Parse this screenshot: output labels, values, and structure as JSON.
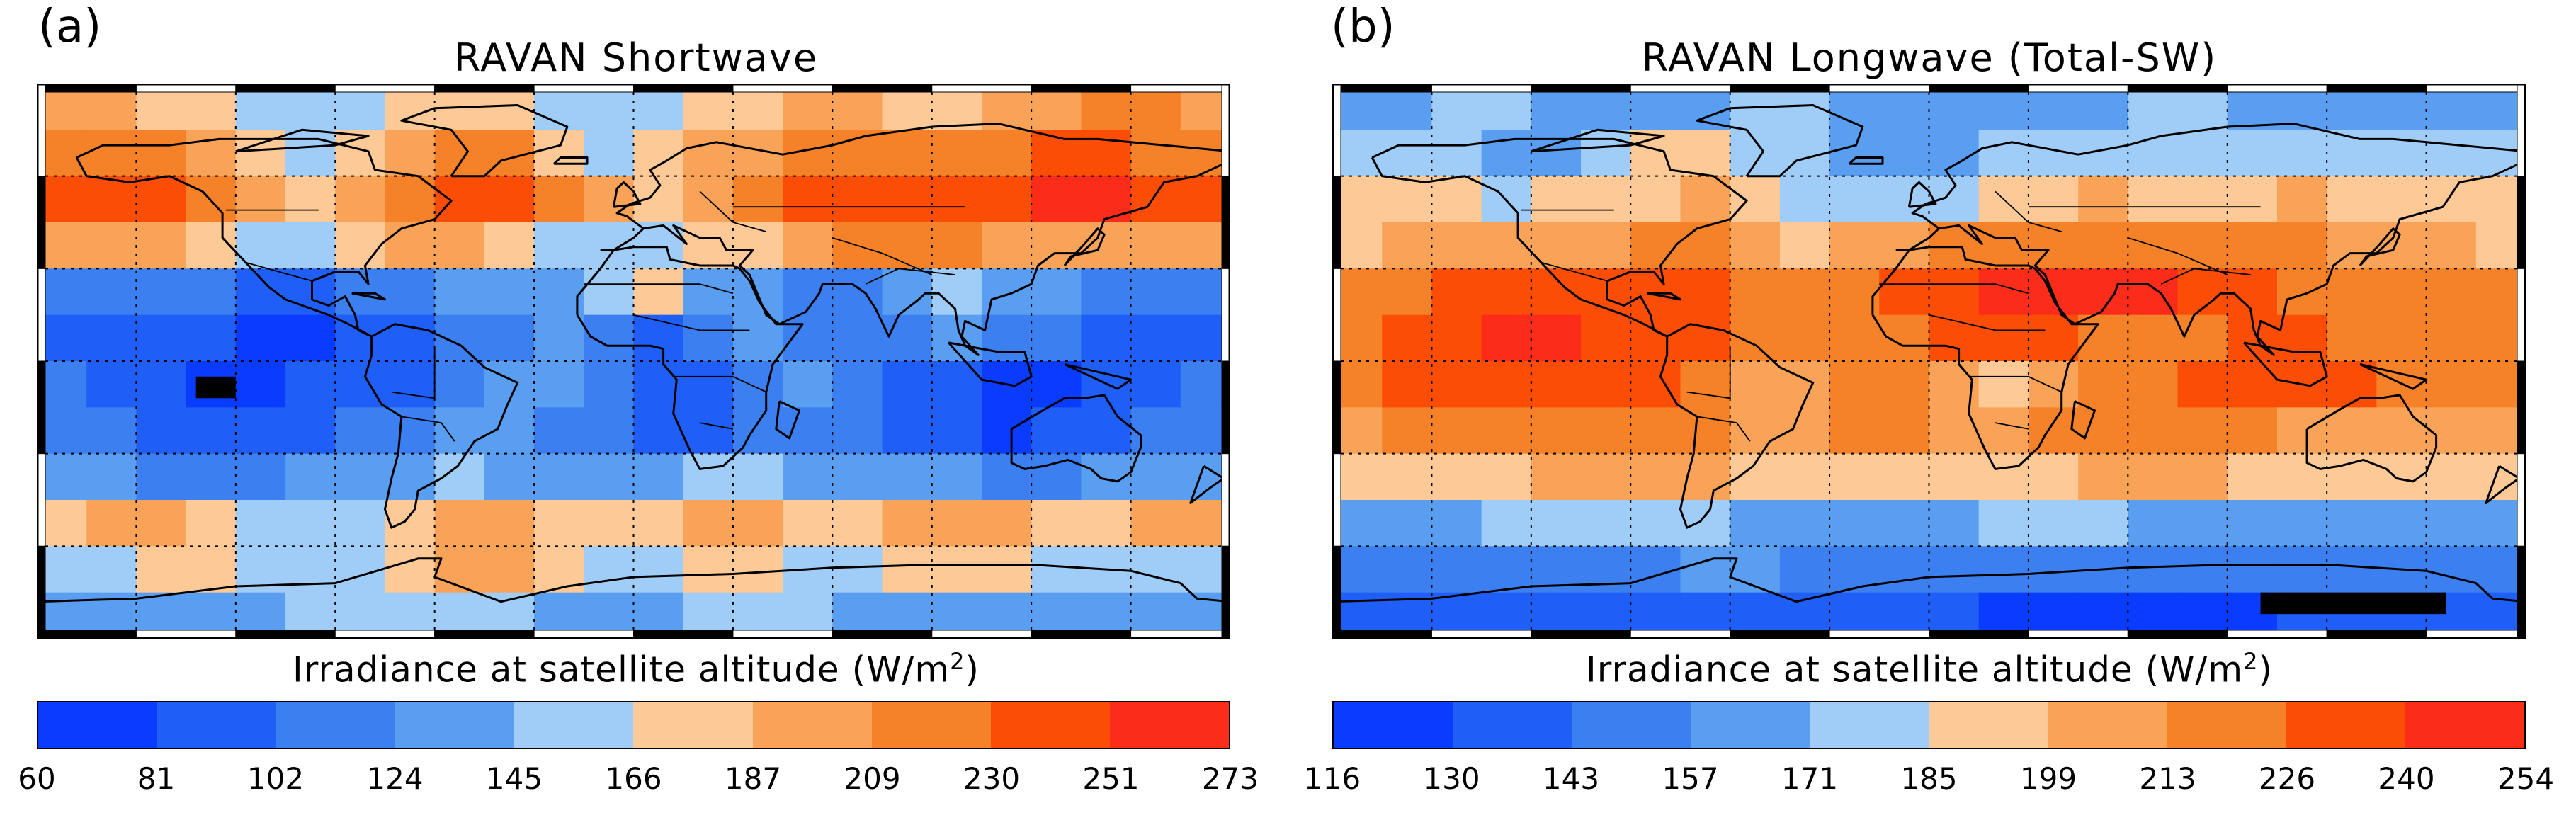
{
  "palette": [
    "#0a3cff",
    "#1f5ef7",
    "#3b7ff0",
    "#5a9ef2",
    "#9fcdf8",
    "#fcc997",
    "#f8a358",
    "#f58128",
    "#fb4d06",
    "#fc2c1b"
  ],
  "coastline_color": "#000000",
  "missing_color": "#000000",
  "panels": [
    {
      "letter": "(a)",
      "title": "RAVAN Shortwave",
      "colorbar_label": "Irradiance at satellite altitude (W/m",
      "colorbar_label_sup": "2",
      "colorbar_label_tail": ")",
      "ticks": [
        "60",
        "81",
        "102",
        "124",
        "145",
        "166",
        "187",
        "209",
        "230",
        "251",
        "273"
      ],
      "bands": [
        {
          "lat0": 90,
          "lat1": 75,
          "classes": [
            6,
            6,
            5,
            5,
            4,
            4,
            4,
            5,
            5,
            5,
            4,
            4,
            4,
            5,
            5,
            6,
            6,
            5,
            5,
            6,
            6,
            7,
            7,
            6
          ]
        },
        {
          "lat0": 75,
          "lat1": 60,
          "classes": [
            7,
            7,
            7,
            6,
            5,
            4,
            5,
            6,
            7,
            7,
            5,
            4,
            5,
            6,
            6,
            7,
            7,
            7,
            7,
            7,
            8,
            8,
            7,
            7
          ]
        },
        {
          "lat0": 60,
          "lat1": 45,
          "classes": [
            8,
            8,
            8,
            7,
            6,
            5,
            6,
            7,
            8,
            8,
            7,
            6,
            5,
            6,
            7,
            8,
            8,
            8,
            8,
            8,
            9,
            9,
            8,
            8
          ]
        },
        {
          "lat0": 45,
          "lat1": 30,
          "classes": [
            6,
            6,
            6,
            5,
            4,
            4,
            5,
            6,
            6,
            5,
            4,
            4,
            4,
            5,
            5,
            6,
            7,
            7,
            7,
            6,
            6,
            6,
            6,
            6
          ]
        },
        {
          "lat0": 30,
          "lat1": 15,
          "classes": [
            2,
            2,
            2,
            2,
            1,
            1,
            2,
            2,
            3,
            3,
            3,
            4,
            5,
            3,
            3,
            2,
            2,
            3,
            4,
            3,
            3,
            2,
            2,
            2
          ]
        },
        {
          "lat0": 15,
          "lat1": 0,
          "classes": [
            1,
            1,
            1,
            1,
            0,
            0,
            1,
            1,
            2,
            2,
            3,
            2,
            1,
            2,
            3,
            2,
            2,
            2,
            3,
            2,
            2,
            1,
            1,
            1
          ]
        },
        {
          "lat0": 0,
          "lat1": -15,
          "classes": [
            2,
            1,
            1,
            0,
            0,
            1,
            1,
            1,
            2,
            3,
            3,
            2,
            1,
            1,
            2,
            3,
            2,
            1,
            1,
            0,
            0,
            1,
            1,
            2
          ]
        },
        {
          "lat0": -15,
          "lat1": -30,
          "classes": [
            2,
            2,
            1,
            1,
            1,
            1,
            2,
            2,
            3,
            3,
            2,
            2,
            1,
            1,
            2,
            2,
            2,
            1,
            1,
            0,
            1,
            1,
            2,
            2
          ]
        },
        {
          "lat0": -30,
          "lat1": -45,
          "classes": [
            3,
            3,
            2,
            2,
            2,
            3,
            3,
            3,
            4,
            3,
            3,
            3,
            3,
            4,
            4,
            3,
            3,
            3,
            3,
            2,
            2,
            3,
            3,
            3
          ]
        },
        {
          "lat0": -45,
          "lat1": -60,
          "classes": [
            5,
            6,
            6,
            5,
            4,
            4,
            4,
            5,
            6,
            6,
            5,
            5,
            5,
            6,
            6,
            5,
            5,
            6,
            6,
            6,
            5,
            5,
            6,
            6
          ]
        },
        {
          "lat0": -60,
          "lat1": -75,
          "classes": [
            4,
            4,
            5,
            5,
            4,
            4,
            4,
            5,
            6,
            6,
            5,
            4,
            4,
            5,
            5,
            4,
            4,
            5,
            5,
            5,
            4,
            4,
            4,
            4
          ]
        },
        {
          "lat0": -75,
          "lat1": -90,
          "classes": [
            3,
            3,
            3,
            3,
            3,
            4,
            4,
            4,
            4,
            4,
            3,
            3,
            3,
            4,
            4,
            4,
            3,
            3,
            3,
            3,
            3,
            3,
            3,
            3
          ]
        }
      ],
      "missing": [
        {
          "lon0": -132,
          "lon1": -120,
          "lat0": -5,
          "lat1": -12
        }
      ]
    },
    {
      "letter": "(b)",
      "title": "RAVAN Longwave (Total-SW)",
      "colorbar_label": "Irradiance at satellite altitude (W/m",
      "colorbar_label_sup": "2",
      "colorbar_label_tail": ")",
      "ticks": [
        "116",
        "130",
        "143",
        "157",
        "171",
        "185",
        "199",
        "213",
        "226",
        "240",
        "254"
      ],
      "bands": [
        {
          "lat0": 90,
          "lat1": 75,
          "classes": [
            3,
            3,
            4,
            4,
            3,
            3,
            3,
            3,
            4,
            4,
            3,
            3,
            3,
            3,
            3,
            3,
            4,
            4,
            3,
            3,
            3,
            3,
            3,
            3
          ]
        },
        {
          "lat0": 75,
          "lat1": 60,
          "classes": [
            4,
            4,
            4,
            3,
            3,
            4,
            5,
            5,
            4,
            4,
            3,
            3,
            3,
            4,
            4,
            4,
            4,
            4,
            4,
            4,
            4,
            4,
            4,
            4
          ]
        },
        {
          "lat0": 60,
          "lat1": 45,
          "classes": [
            5,
            5,
            5,
            4,
            5,
            5,
            5,
            6,
            5,
            4,
            4,
            4,
            4,
            5,
            5,
            6,
            5,
            5,
            5,
            6,
            5,
            5,
            5,
            5
          ]
        },
        {
          "lat0": 45,
          "lat1": 30,
          "classes": [
            5,
            6,
            6,
            6,
            6,
            6,
            7,
            7,
            6,
            5,
            6,
            6,
            7,
            7,
            7,
            7,
            7,
            7,
            7,
            7,
            6,
            6,
            6,
            5
          ]
        },
        {
          "lat0": 30,
          "lat1": 15,
          "classes": [
            7,
            7,
            8,
            8,
            8,
            8,
            8,
            8,
            7,
            7,
            7,
            8,
            8,
            9,
            9,
            9,
            9,
            8,
            8,
            7,
            7,
            7,
            7,
            7
          ]
        },
        {
          "lat0": 15,
          "lat1": 0,
          "classes": [
            7,
            8,
            8,
            9,
            9,
            8,
            8,
            8,
            7,
            7,
            7,
            7,
            8,
            8,
            8,
            7,
            7,
            7,
            8,
            8,
            7,
            7,
            7,
            7
          ]
        },
        {
          "lat0": 0,
          "lat1": -15,
          "classes": [
            7,
            8,
            8,
            8,
            8,
            8,
            8,
            7,
            6,
            6,
            7,
            7,
            6,
            5,
            6,
            7,
            7,
            8,
            8,
            8,
            8,
            7,
            7,
            7
          ]
        },
        {
          "lat0": -15,
          "lat1": -30,
          "classes": [
            6,
            7,
            7,
            7,
            7,
            7,
            7,
            7,
            6,
            6,
            7,
            7,
            6,
            6,
            7,
            7,
            7,
            7,
            7,
            6,
            6,
            6,
            6,
            6
          ]
        },
        {
          "lat0": -30,
          "lat1": -45,
          "classes": [
            5,
            5,
            5,
            5,
            6,
            6,
            6,
            6,
            5,
            5,
            5,
            5,
            5,
            5,
            5,
            6,
            6,
            6,
            5,
            5,
            5,
            5,
            5,
            5
          ]
        },
        {
          "lat0": -45,
          "lat1": -60,
          "classes": [
            3,
            3,
            3,
            4,
            4,
            4,
            4,
            4,
            3,
            3,
            3,
            3,
            3,
            4,
            4,
            4,
            3,
            3,
            3,
            3,
            3,
            3,
            3,
            3
          ]
        },
        {
          "lat0": -60,
          "lat1": -75,
          "classes": [
            2,
            2,
            2,
            2,
            2,
            2,
            2,
            3,
            3,
            2,
            2,
            2,
            2,
            2,
            2,
            2,
            2,
            2,
            2,
            2,
            2,
            2,
            2,
            2
          ]
        },
        {
          "lat0": -75,
          "lat1": -90,
          "classes": [
            1,
            1,
            1,
            1,
            1,
            1,
            1,
            1,
            1,
            1,
            1,
            1,
            1,
            0,
            0,
            0,
            0,
            0,
            0,
            1,
            1,
            1,
            1,
            1
          ]
        }
      ],
      "missing": [
        {
          "lon0": 100,
          "lon1": 156,
          "lat0": -75,
          "lat1": -82
        }
      ]
    }
  ]
}
